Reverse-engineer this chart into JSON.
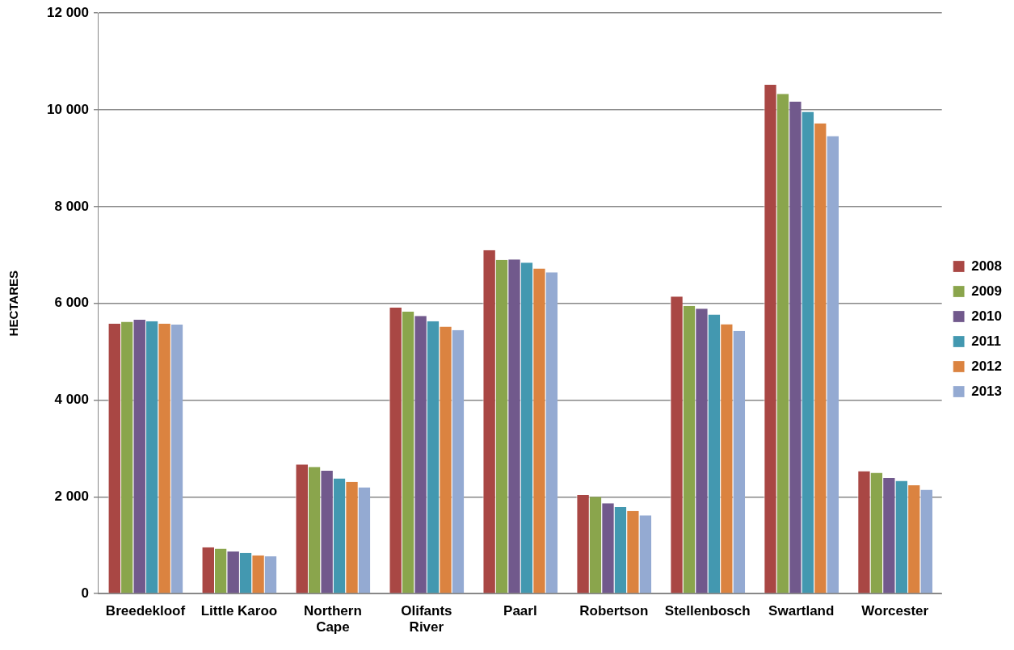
{
  "chart_data": {
    "type": "bar",
    "ylabel": "HECTARES",
    "categories": [
      "Breedekloof",
      "Little Karoo",
      "Northern Cape",
      "Olifants River",
      "Paarl",
      "Robertson",
      "Stellenbosch",
      "Swartland",
      "Worcester"
    ],
    "series": [
      {
        "name": "2008",
        "color": "#a94744",
        "values": [
          5580,
          960,
          2670,
          5910,
          7100,
          2040,
          6140,
          10520,
          2530
        ]
      },
      {
        "name": "2009",
        "color": "#8aa54c",
        "values": [
          5620,
          930,
          2620,
          5830,
          6900,
          2000,
          5950,
          10330,
          2500
        ]
      },
      {
        "name": "2010",
        "color": "#71598c",
        "values": [
          5660,
          870,
          2540,
          5740,
          6910,
          1870,
          5890,
          10170,
          2390
        ]
      },
      {
        "name": "2011",
        "color": "#4398b0",
        "values": [
          5630,
          840,
          2380,
          5630,
          6840,
          1790,
          5770,
          9960,
          2330
        ]
      },
      {
        "name": "2012",
        "color": "#db8340",
        "values": [
          5580,
          790,
          2310,
          5520,
          6720,
          1710,
          5570,
          9720,
          2240
        ]
      },
      {
        "name": "2013",
        "color": "#94aad2",
        "values": [
          5560,
          770,
          2200,
          5450,
          6640,
          1620,
          5430,
          9460,
          2150
        ]
      }
    ],
    "ylim": [
      0,
      12000
    ],
    "yticks": [
      {
        "value": 0,
        "label": "0"
      },
      {
        "value": 2000,
        "label": "2 000"
      },
      {
        "value": 4000,
        "label": "4 000"
      },
      {
        "value": 6000,
        "label": "6 000"
      },
      {
        "value": 8000,
        "label": "8 000"
      },
      {
        "value": 10000,
        "label": "10 000"
      },
      {
        "value": 12000,
        "label": "12 000"
      }
    ],
    "grid": "y",
    "legend": "right"
  }
}
